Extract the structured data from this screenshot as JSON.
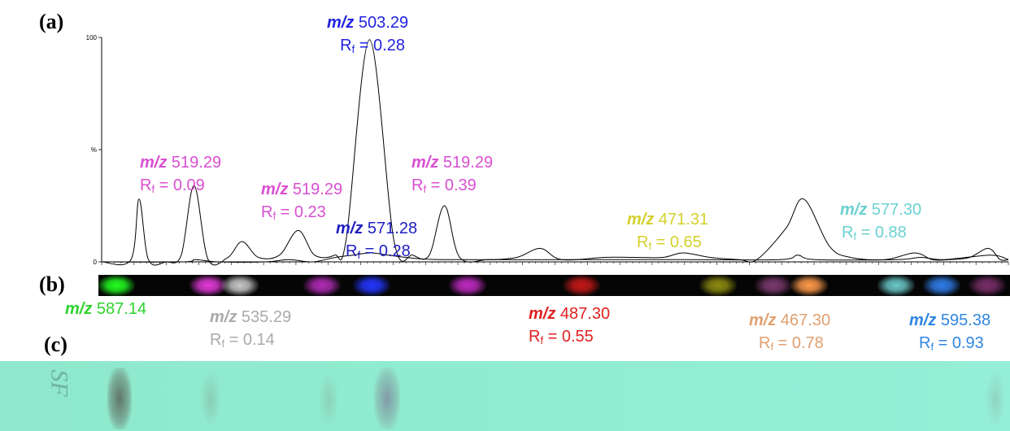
{
  "panels": {
    "a": "(a)",
    "b": "(b)",
    "c": "(c)"
  },
  "chart_data": {
    "type": "line",
    "ylim": [
      0,
      100
    ],
    "yticks": [
      "100",
      "%",
      "0"
    ],
    "series": [
      {
        "values": [
          [
            0,
            0
          ],
          [
            25,
            1
          ],
          [
            32,
            28
          ],
          [
            40,
            1
          ],
          [
            55,
            0
          ],
          [
            68,
            3
          ],
          [
            79,
            34
          ],
          [
            91,
            1
          ],
          [
            108,
            2
          ],
          [
            120,
            9
          ],
          [
            134,
            2
          ],
          [
            152,
            3
          ],
          [
            168,
            14
          ],
          [
            182,
            3
          ],
          [
            199,
            3
          ],
          [
            209,
            10
          ],
          [
            229,
            99
          ],
          [
            250,
            9
          ],
          [
            266,
            3
          ],
          [
            280,
            3
          ],
          [
            293,
            25
          ],
          [
            306,
            2
          ],
          [
            330,
            1
          ],
          [
            355,
            2
          ],
          [
            375,
            6
          ],
          [
            393,
            1
          ],
          [
            430,
            2
          ],
          [
            455,
            2
          ],
          [
            480,
            2
          ],
          [
            497,
            4
          ],
          [
            520,
            2
          ],
          [
            545,
            1
          ],
          [
            560,
            1
          ],
          [
            585,
            15
          ],
          [
            600,
            28
          ],
          [
            622,
            7
          ],
          [
            640,
            2
          ],
          [
            670,
            1
          ],
          [
            695,
            4
          ],
          [
            710,
            1
          ],
          [
            725,
            1
          ],
          [
            742,
            2
          ],
          [
            758,
            6
          ],
          [
            768,
            1
          ],
          [
            775,
            1
          ]
        ]
      },
      {
        "values": [
          [
            0,
            0
          ],
          [
            70,
            0
          ],
          [
            80,
            1
          ],
          [
            100,
            0
          ],
          [
            140,
            0
          ],
          [
            160,
            1
          ],
          [
            180,
            0
          ],
          [
            200,
            2
          ],
          [
            215,
            3
          ],
          [
            230,
            4
          ],
          [
            245,
            3
          ],
          [
            260,
            2
          ],
          [
            290,
            1
          ],
          [
            400,
            1
          ],
          [
            500,
            1
          ],
          [
            580,
            1
          ],
          [
            595,
            3
          ],
          [
            610,
            1
          ],
          [
            680,
            1
          ],
          [
            700,
            2
          ],
          [
            720,
            1
          ],
          [
            760,
            3
          ],
          [
            775,
            1
          ]
        ]
      }
    ]
  },
  "annotations": [
    {
      "mz_prefix": "m/z",
      "mz": "503.29",
      "rf_prefix": "R",
      "rf_sub": "f",
      "rf": " = 0.28",
      "color": "#2222e0"
    },
    {
      "mz_prefix": "m/z",
      "mz": "519.29",
      "rf_prefix": "R",
      "rf_sub": "f",
      "rf": " = 0.09",
      "color": "#d94fd1"
    },
    {
      "mz_prefix": "m/z",
      "mz": "519.29",
      "rf_prefix": "R",
      "rf_sub": "f",
      "rf": " = 0.23",
      "color": "#d94fd1"
    },
    {
      "mz_prefix": "m/z",
      "mz": "519.29",
      "rf_prefix": "R",
      "rf_sub": "f",
      "rf": " = 0.39",
      "color": "#d94fd1"
    },
    {
      "mz_prefix": "m/z",
      "mz": "571.28",
      "rf_prefix": "R",
      "rf_sub": "f",
      "rf": " = 0.28",
      "color": "#2020c0"
    },
    {
      "mz_prefix": "m/z",
      "mz": "471.31",
      "rf_prefix": "R",
      "rf_sub": "f",
      "rf": " = 0.65",
      "color": "#d4d02a"
    },
    {
      "mz_prefix": "m/z",
      "mz": "577.30",
      "rf_prefix": "R",
      "rf_sub": "f",
      "rf": " = 0.88",
      "color": "#6ad1d1"
    },
    {
      "mz_prefix": "m/z",
      "mz": "587.14",
      "color": "#2ed32e"
    },
    {
      "mz_prefix": "m/z",
      "mz": "535.29",
      "rf_prefix": "R",
      "rf_sub": "f",
      "rf": " = 0.14",
      "color": "#aaaaaa"
    },
    {
      "mz_prefix": "m/z",
      "mz": "487.30",
      "rf_prefix": "R",
      "rf_sub": "f",
      "rf": " = 0.55",
      "color": "#e02020"
    },
    {
      "mz_prefix": "m/z",
      "mz": "467.30",
      "rf_prefix": "R",
      "rf_sub": "f",
      "rf": " = 0.78",
      "color": "#e0a070"
    },
    {
      "mz_prefix": "m/z",
      "mz": "595.38",
      "rf_prefix": "R",
      "rf_sub": "f",
      "rf": " = 0.93",
      "color": "#2f86e0"
    }
  ],
  "imaging_bands": [
    {
      "pos": 0.02,
      "color": "#22ff22"
    },
    {
      "pos": 0.12,
      "color": "#e23ad9"
    },
    {
      "pos": 0.155,
      "color": "#c8c8c8"
    },
    {
      "pos": 0.245,
      "color": "#b02cb5"
    },
    {
      "pos": 0.3,
      "color": "#2236ff"
    },
    {
      "pos": 0.405,
      "color": "#c02ac2"
    },
    {
      "pos": 0.53,
      "color": "#c41818"
    },
    {
      "pos": 0.68,
      "color": "#8c8a10"
    },
    {
      "pos": 0.74,
      "color": "#7a3a6e"
    },
    {
      "pos": 0.78,
      "color": "#ff9a4a"
    },
    {
      "pos": 0.875,
      "color": "#6ac8c8"
    },
    {
      "pos": 0.925,
      "color": "#2f7ee8"
    },
    {
      "pos": 0.975,
      "color": "#7a2f6a"
    }
  ],
  "tlc": {
    "label": "SF",
    "background": "#90ecd0"
  }
}
